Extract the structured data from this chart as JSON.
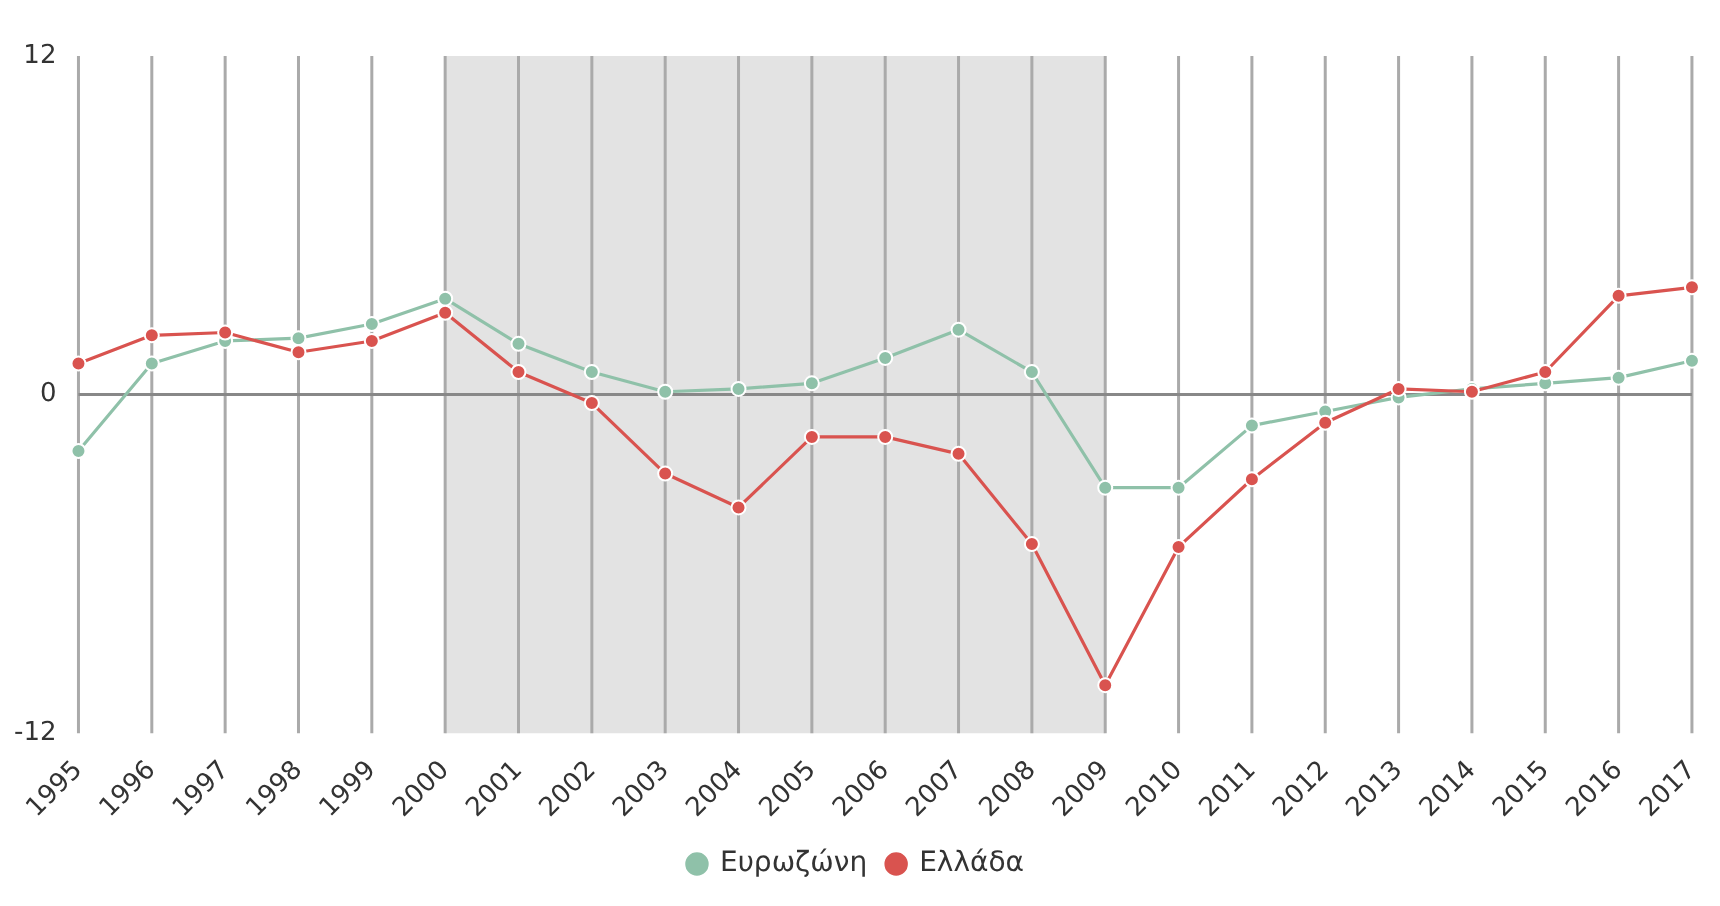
{
  "chart_data": {
    "type": "line",
    "categories": [
      "1995",
      "1996",
      "1997",
      "1998",
      "1999",
      "2000",
      "2001",
      "2002",
      "2003",
      "2004",
      "2005",
      "2006",
      "2007",
      "2008",
      "2009",
      "2010",
      "2011",
      "2012",
      "2013",
      "2014",
      "2015",
      "2016",
      "2017"
    ],
    "series": [
      {
        "name": "Ευρωζώνη",
        "color": "#8fc1a9",
        "values": [
          -2.0,
          1.1,
          1.9,
          2.0,
          2.5,
          3.4,
          1.8,
          0.8,
          0.1,
          0.2,
          0.4,
          1.3,
          2.3,
          0.8,
          -3.3,
          -3.3,
          -1.1,
          -0.6,
          -0.1,
          0.2,
          0.4,
          0.6,
          1.2
        ]
      },
      {
        "name": "Ελλάδα",
        "color": "#d9534f",
        "values": [
          1.1,
          2.1,
          2.2,
          1.5,
          1.9,
          2.9,
          0.8,
          -0.3,
          -2.8,
          -4.0,
          -1.5,
          -1.5,
          -2.1,
          -5.3,
          -10.3,
          -5.4,
          -3.0,
          -1.0,
          0.2,
          0.1,
          0.8,
          3.5,
          3.8
        ]
      }
    ],
    "ylim": [
      -12,
      12
    ],
    "yticks": [
      -12,
      0,
      12
    ],
    "grid": "x",
    "legend": "bottom",
    "marker": "circle",
    "line_style": "solid",
    "ref_lines": [
      {
        "axis": "y",
        "value": 0,
        "color": "#888888"
      }
    ],
    "bands": [
      {
        "axis": "x",
        "from": "2000",
        "to": "2009",
        "color": "#e3e3e3"
      }
    ]
  }
}
